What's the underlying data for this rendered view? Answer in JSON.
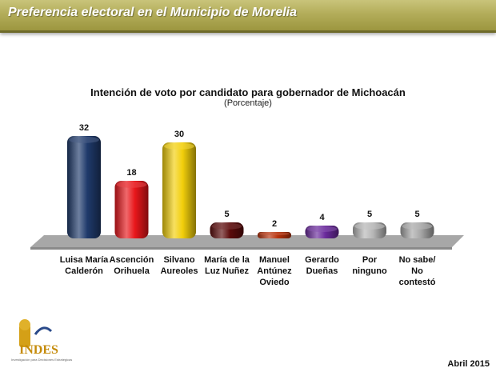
{
  "header": {
    "title": "Preferencia electoral en el Municipio de Morelia"
  },
  "chart_data": {
    "type": "bar",
    "title": "Intención de voto por candidato para gobernador de Michoacán",
    "subtitle": "(Porcentaje)",
    "categories": [
      [
        "Luisa María",
        "Calderón"
      ],
      [
        "Ascención",
        "Orihuela"
      ],
      [
        "Silvano",
        "Aureoles"
      ],
      [
        "María de la",
        "Luz Nuñez"
      ],
      [
        "Manuel",
        "Antúnez",
        "Oviedo"
      ],
      [
        "Gerardo",
        "Dueñas"
      ],
      [
        "Por",
        "ninguno"
      ],
      [
        "No sabe/",
        "No",
        "contestó"
      ]
    ],
    "values": [
      32,
      18,
      30,
      5,
      2,
      4,
      5,
      5
    ],
    "colors": [
      "#1f3a6b",
      "#e8161b",
      "#f2cf0b",
      "#5a0a0a",
      "#b8320c",
      "#6a2a9c",
      "#b7b7b7",
      "#a8a8a8"
    ],
    "ylim": [
      0,
      35
    ],
    "grid": false,
    "legend": "none"
  },
  "logo": {
    "name": "INDES",
    "tagline": "Investigación para Decisiones Estratégicas"
  },
  "footer": {
    "date": "Abril 2015"
  }
}
